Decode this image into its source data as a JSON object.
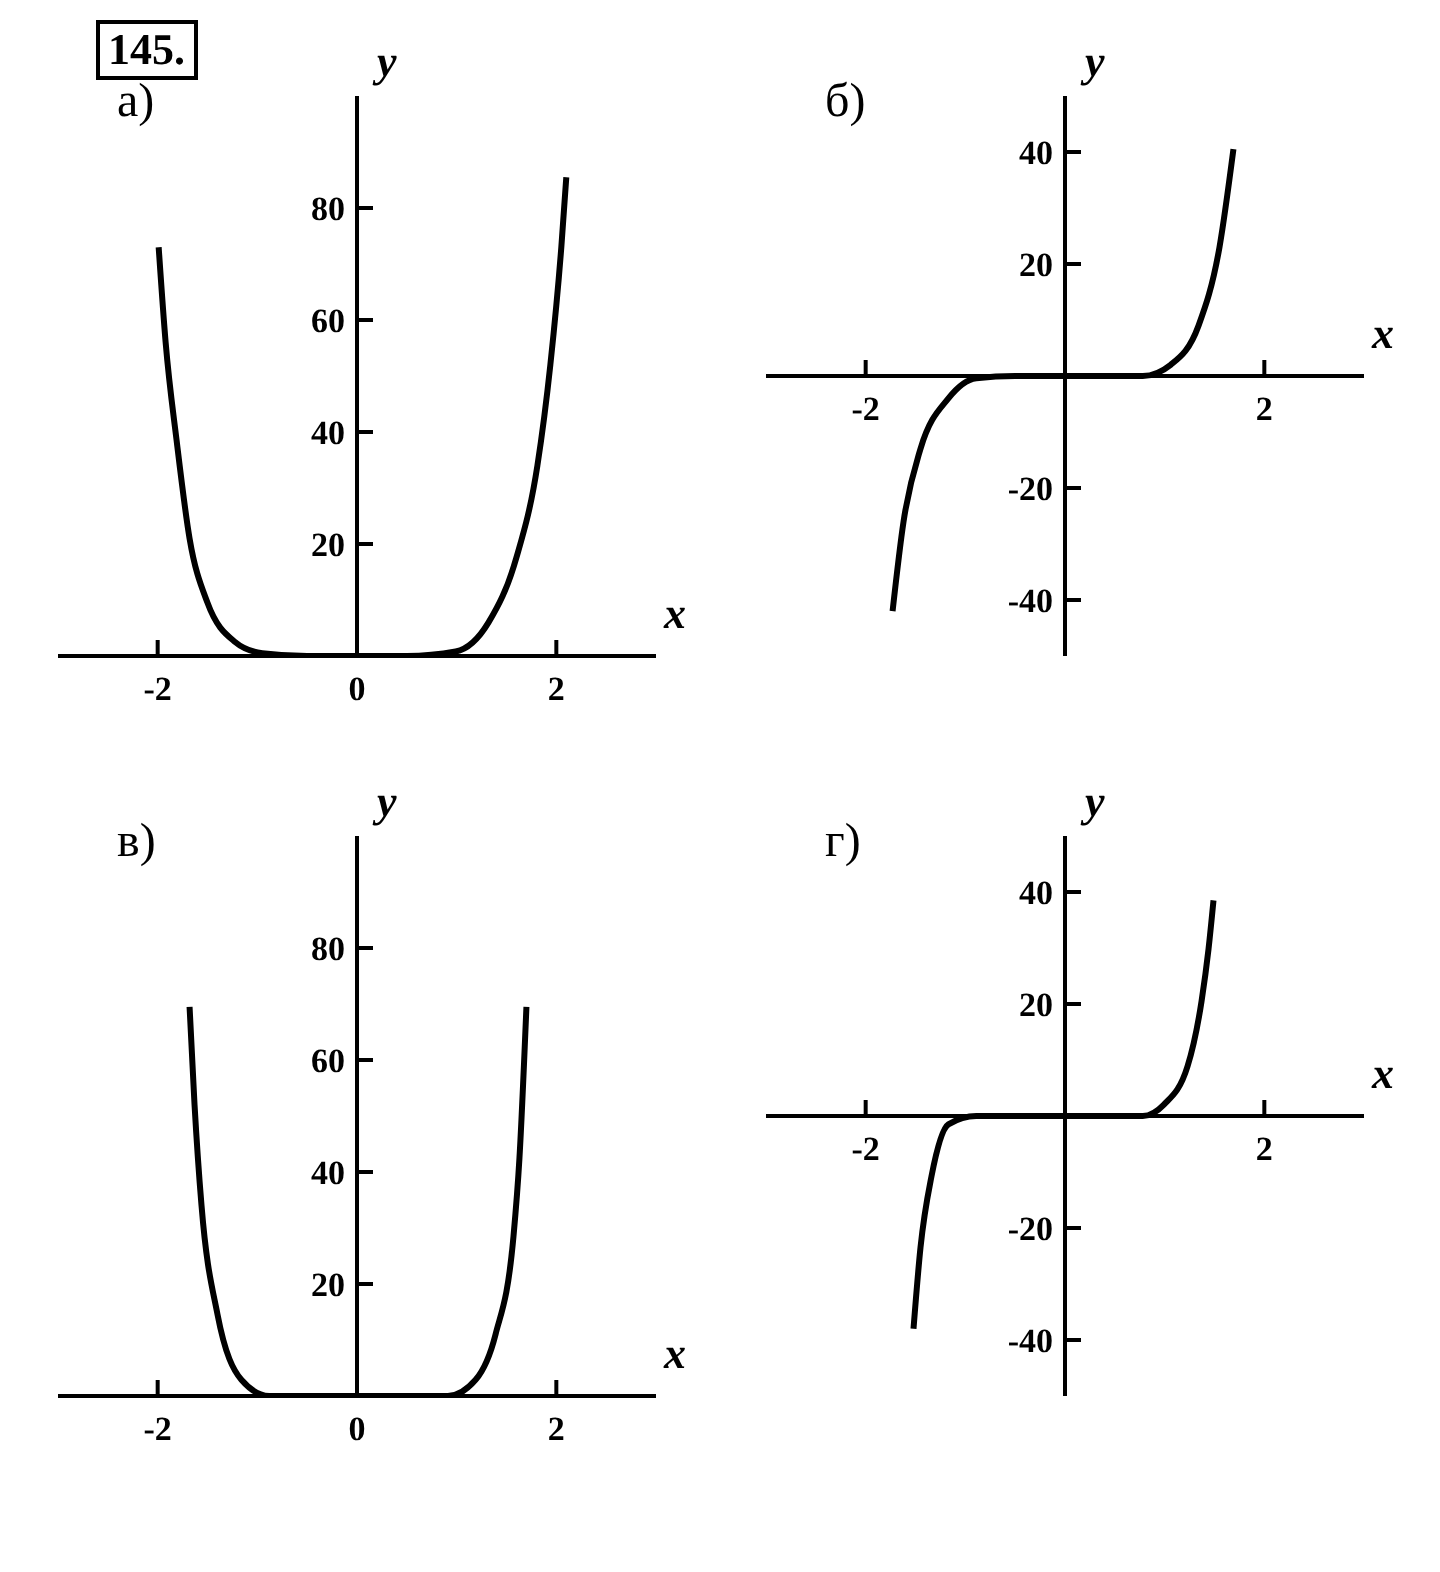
{
  "chart_data": [
    {
      "type": "line",
      "title": "а)",
      "xlabel": "x",
      "ylabel": "y",
      "annotations": [
        "145."
      ],
      "xlim": [
        -3,
        3
      ],
      "ylim": [
        0,
        100
      ],
      "xticks": [
        -2,
        0,
        2
      ],
      "yticks": [
        20,
        40,
        60,
        80
      ],
      "series": [
        {
          "color": "#000000",
          "x": [
            -1.99,
            -1.92,
            -1.81,
            -1.68,
            -1.5,
            -1.23,
            -0.95,
            -0.5,
            0,
            0.5,
            0.99,
            1.32,
            1.6,
            1.81,
            1.94,
            2.05,
            2.1
          ],
          "values": [
            73,
            56,
            38.5,
            21,
            9.5,
            2.6,
            0.5,
            0,
            0,
            0,
            0.8,
            6,
            17.6,
            34,
            52,
            73,
            85.5
          ]
        }
      ]
    },
    {
      "type": "line",
      "title": "б)",
      "xlabel": "x",
      "ylabel": "y",
      "xlim": [
        -3,
        3
      ],
      "ylim": [
        -50,
        50
      ],
      "xticks": [
        -2,
        2
      ],
      "yticks": [
        -40,
        -20,
        20,
        40
      ],
      "series": [
        {
          "color": "#000000",
          "x": [
            -1.73,
            -1.62,
            -1.45,
            -1.17,
            -0.89,
            -0.5,
            0,
            0.5,
            0.78,
            1.06,
            1.34,
            1.55,
            1.69
          ],
          "values": [
            -42,
            -26,
            -13,
            -4,
            -0.4,
            0,
            0,
            0,
            0,
            2,
            9,
            23,
            40.5
          ]
        }
      ]
    },
    {
      "type": "line",
      "title": "в)",
      "xlabel": "x",
      "ylabel": "y",
      "xlim": [
        -3,
        3
      ],
      "ylim": [
        0,
        100
      ],
      "xticks": [
        -2,
        0,
        2
      ],
      "yticks": [
        20,
        40,
        60,
        80
      ],
      "series": [
        {
          "color": "#000000",
          "x": [
            -1.68,
            -1.63,
            -1.56,
            -1.4,
            -1.16,
            -0.88,
            -0.5,
            0,
            0.5,
            0.91,
            1.19,
            1.39,
            1.57,
            1.63,
            1.7
          ],
          "values": [
            69.5,
            52,
            34,
            14.6,
            2.9,
            0,
            0,
            0,
            0,
            0,
            2.9,
            11,
            28.5,
            42.5,
            69.5
          ]
        }
      ]
    },
    {
      "type": "line",
      "title": "г)",
      "xlabel": "x",
      "ylabel": "y",
      "xlim": [
        -3,
        3
      ],
      "ylim": [
        -50,
        50
      ],
      "xticks": [
        -2,
        2
      ],
      "yticks": [
        -40,
        -20,
        20,
        40
      ],
      "series": [
        {
          "color": "#000000",
          "x": [
            -1.52,
            -1.45,
            -1.34,
            -1.17,
            -0.89,
            -0.5,
            0,
            0.5,
            0.78,
            0.99,
            1.23,
            1.37,
            1.44,
            1.49
          ],
          "values": [
            -38,
            -23.5,
            -10.8,
            -1.5,
            0,
            0,
            0,
            0,
            0,
            2,
            8.9,
            20.5,
            29.8,
            38.5
          ]
        }
      ]
    }
  ]
}
